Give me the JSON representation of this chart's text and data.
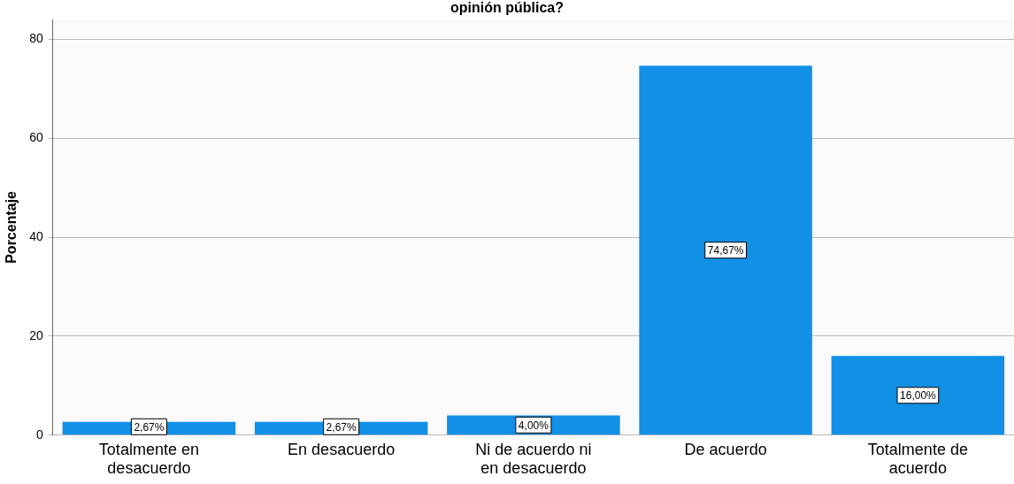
{
  "chart_data": {
    "type": "bar",
    "title": "opinión pública?",
    "ylabel": "Porcentaje",
    "categories": [
      "Totalmente en desacuerdo",
      "En desacuerdo",
      "Ni de acuerdo ni en desacuerdo",
      "De acuerdo",
      "Totalmente de acuerdo"
    ],
    "values": [
      2.67,
      2.67,
      4.0,
      74.67,
      16.0
    ],
    "value_labels": [
      "2,67%",
      "2,67%",
      "4,00%",
      "74,67%",
      "16,00%"
    ],
    "color": "#1190e6",
    "ylim": [
      0,
      84
    ],
    "yticks": [
      0,
      20,
      40,
      60,
      80
    ],
    "grid": "y",
    "legend": false
  }
}
